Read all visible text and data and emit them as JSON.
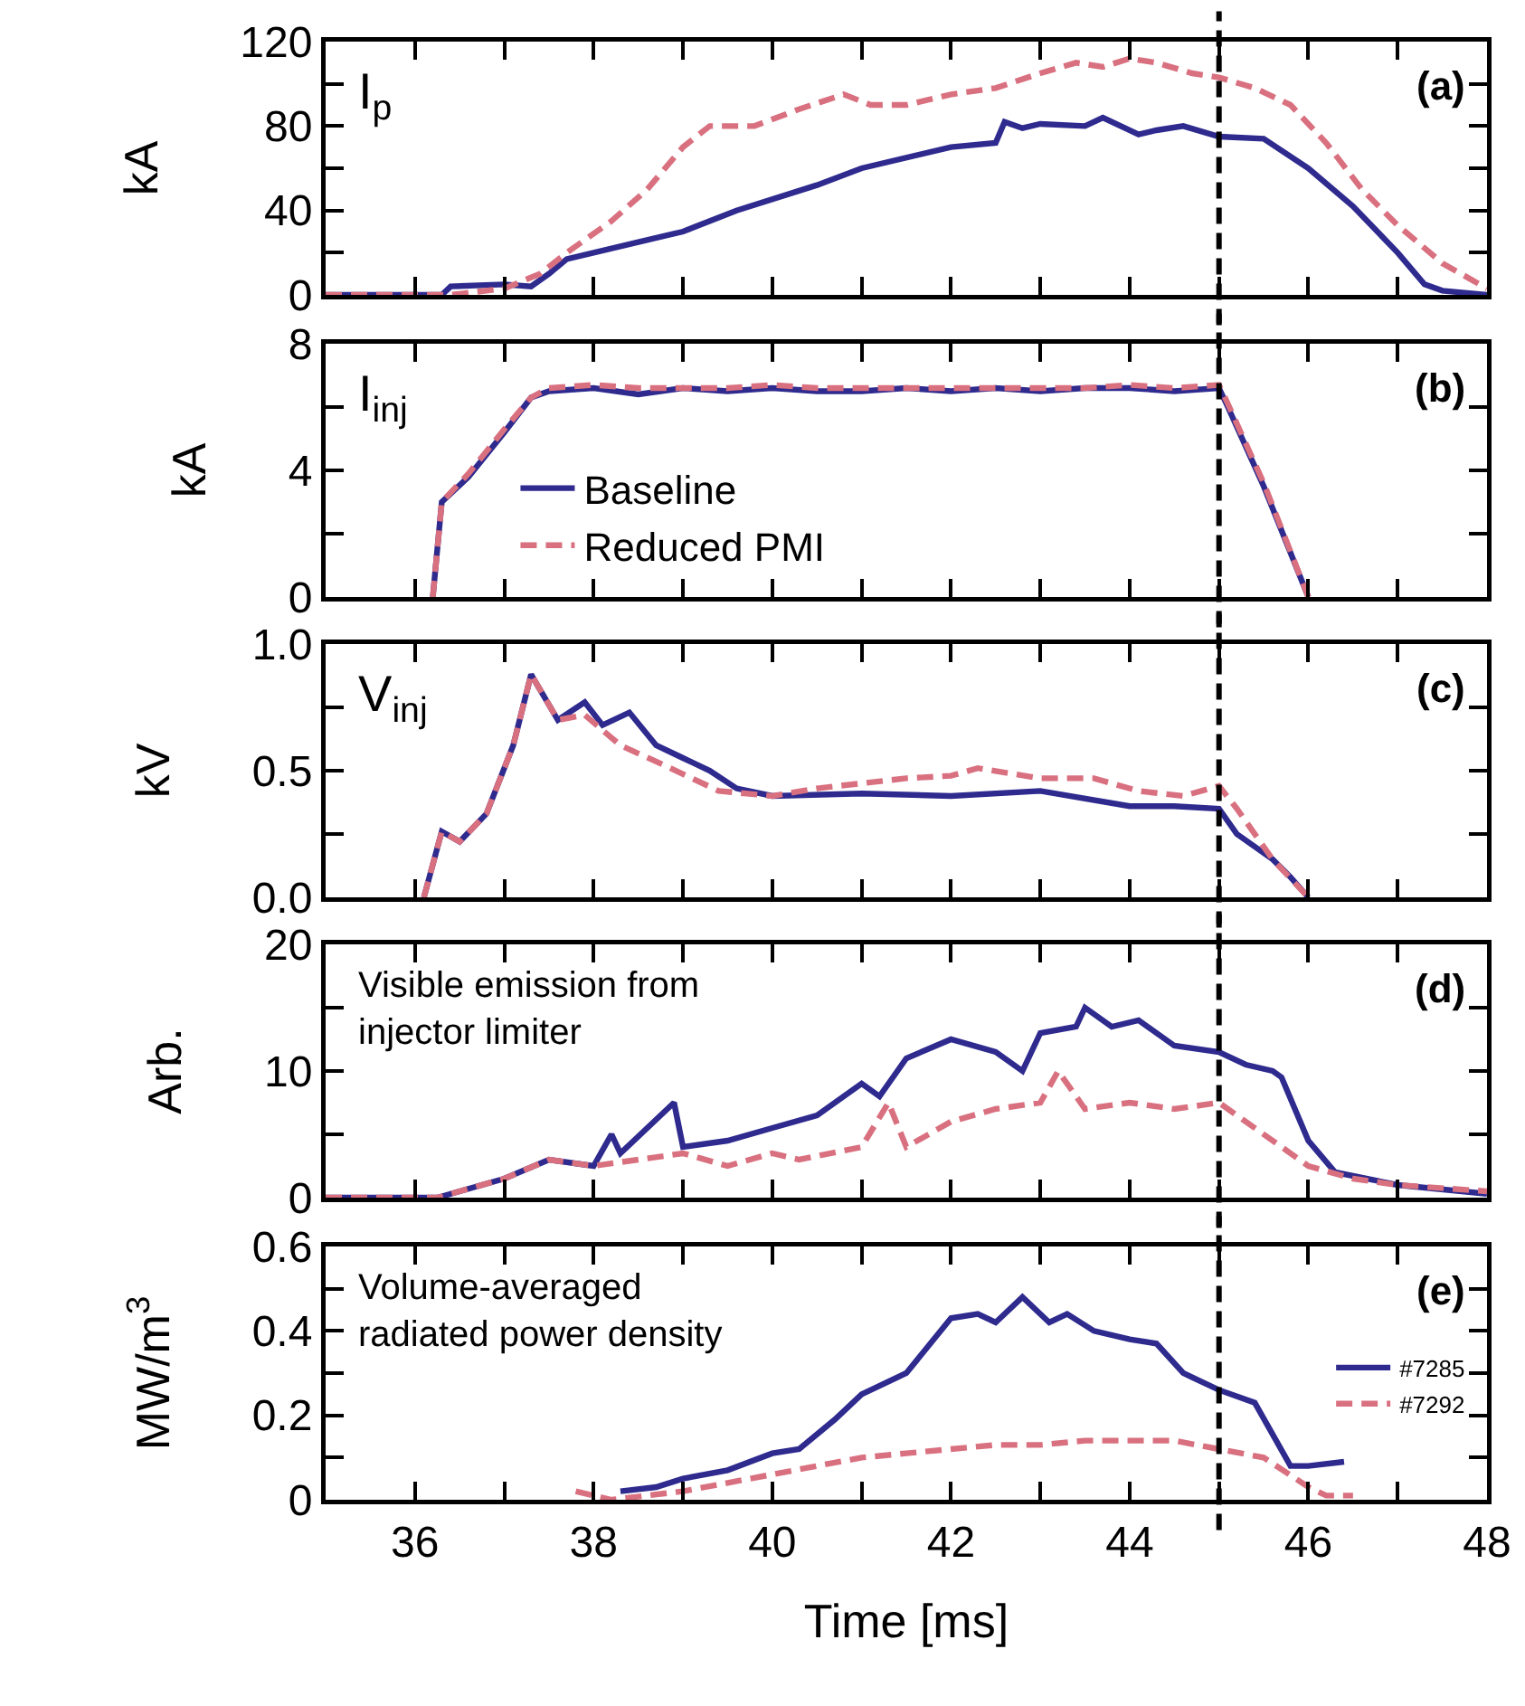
{
  "chart_data": [
    {
      "type": "line",
      "ylabel": "kA",
      "annotations": [
        "I$_{p}$",
        "(a)"
      ],
      "xlim": [
        35,
        48
      ],
      "xticks": [
        36,
        {
          "value": 37,
          "label": null
        },
        38,
        {
          "value": 39,
          "label": null
        },
        40,
        {
          "value": 41,
          "label": null
        },
        42,
        {
          "value": 43,
          "label": null
        },
        44,
        {
          "value": 45,
          "label": null
        },
        46,
        {
          "value": 47,
          "label": null
        },
        48
      ],
      "ylim": [
        0,
        120
      ],
      "yticks": [
        0,
        {
          "value": 20,
          "label": null
        },
        40,
        {
          "value": 60,
          "label": null
        },
        80,
        {
          "value": 100,
          "label": null
        },
        120
      ],
      "tick_labels": "y",
      "grid": false,
      "legend": false,
      "ref_lines": [
        {
          "axis": "x",
          "value": 45,
          "color": "#000000",
          "line_style": "dashed"
        }
      ],
      "series": [
        {
          "color": "#2e2a8e",
          "line_style": "solid",
          "x": [
            35,
            36.3,
            36.4,
            37,
            37.3,
            37.5,
            37.7,
            38.5,
            39,
            39.6,
            40.5,
            41,
            42,
            42.5,
            42.6,
            42.8,
            43,
            43.5,
            43.7,
            44.1,
            44.3,
            44.6,
            45,
            45.5,
            46,
            46.5,
            47,
            47.3,
            47.5,
            48
          ],
          "values": [
            0,
            0,
            4,
            5,
            4,
            10,
            17,
            25,
            30,
            40,
            52,
            60,
            70,
            72,
            82,
            79,
            81,
            80,
            84,
            76,
            78,
            80,
            75,
            74,
            60,
            42,
            20,
            5,
            2,
            0
          ]
        },
        {
          "color": "#d9707f",
          "line_style": "dashed",
          "x": [
            35,
            36.4,
            37,
            37.4,
            37.7,
            38.2,
            38.6,
            39,
            39.3,
            39.8,
            40.3,
            40.8,
            41.1,
            41.5,
            42,
            42.5,
            43,
            43.4,
            43.7,
            44,
            44.3,
            44.7,
            45,
            45.4,
            45.8,
            46.2,
            46.6,
            47,
            47.5,
            48
          ],
          "values": [
            0,
            0,
            3,
            10,
            20,
            35,
            50,
            70,
            80,
            80,
            88,
            95,
            90,
            90,
            95,
            98,
            105,
            110,
            108,
            112,
            110,
            105,
            103,
            98,
            90,
            72,
            50,
            33,
            15,
            3
          ]
        }
      ]
    },
    {
      "type": "line",
      "ylabel": "kA",
      "annotations": [
        "I$_{inj}$",
        "(b)"
      ],
      "xlim": [
        35,
        48
      ],
      "xticks": [
        36,
        {
          "value": 37,
          "label": null
        },
        38,
        {
          "value": 39,
          "label": null
        },
        40,
        {
          "value": 41,
          "label": null
        },
        42,
        {
          "value": 43,
          "label": null
        },
        44,
        {
          "value": 45,
          "label": null
        },
        46,
        {
          "value": 47,
          "label": null
        },
        48
      ],
      "ylim": [
        0,
        8
      ],
      "yticks": [
        0,
        {
          "value": 2,
          "label": null
        },
        4,
        {
          "value": 6,
          "label": null
        },
        8
      ],
      "tick_labels": "y",
      "grid": false,
      "legend": "bottom left",
      "ref_lines": [
        {
          "axis": "x",
          "value": 45,
          "color": "#000000",
          "line_style": "dashed"
        }
      ],
      "series": [
        {
          "name": "Baseline",
          "color": "#2e2a8e",
          "line_style": "solid",
          "x": [
            36.2,
            36.3,
            36.6,
            37,
            37.3,
            37.5,
            38,
            38.5,
            39,
            39.5,
            40,
            40.5,
            41,
            41.5,
            42,
            42.5,
            43,
            43.5,
            44,
            44.5,
            45,
            45.1,
            45.5,
            46
          ],
          "values": [
            0,
            3,
            3.8,
            5.2,
            6.3,
            6.5,
            6.6,
            6.4,
            6.6,
            6.5,
            6.6,
            6.5,
            6.5,
            6.6,
            6.5,
            6.6,
            6.5,
            6.6,
            6.6,
            6.5,
            6.6,
            6,
            3.5,
            0
          ]
        },
        {
          "name": "Reduced PMI",
          "color": "#d9707f",
          "line_style": "dashed",
          "x": [
            36.2,
            36.3,
            36.6,
            37,
            37.3,
            37.5,
            38,
            38.5,
            39,
            39.5,
            40,
            40.5,
            41,
            41.5,
            42,
            42.5,
            43,
            43.5,
            44,
            44.5,
            45,
            45.1,
            45.5,
            46
          ],
          "values": [
            0,
            3,
            3.9,
            5.3,
            6.3,
            6.6,
            6.7,
            6.6,
            6.6,
            6.6,
            6.7,
            6.6,
            6.6,
            6.6,
            6.6,
            6.6,
            6.6,
            6.6,
            6.7,
            6.6,
            6.7,
            6.1,
            3.6,
            0
          ]
        }
      ]
    },
    {
      "type": "line",
      "ylabel": "kV",
      "annotations": [
        "V$_{inj}$",
        "(c)"
      ],
      "xlim": [
        35,
        48
      ],
      "xticks": [
        36,
        {
          "value": 37,
          "label": null
        },
        38,
        {
          "value": 39,
          "label": null
        },
        40,
        {
          "value": 41,
          "label": null
        },
        42,
        {
          "value": 43,
          "label": null
        },
        44,
        {
          "value": 45,
          "label": null
        },
        46,
        {
          "value": 47,
          "label": null
        },
        48
      ],
      "ylim": [
        0,
        1
      ],
      "yticks": [
        {
          "value": 0,
          "label": "0.0"
        },
        {
          "value": 0.25,
          "label": null
        },
        {
          "value": 0.5,
          "label": "0.5"
        },
        {
          "value": 0.75,
          "label": null
        },
        {
          "value": 1,
          "label": "1.0"
        }
      ],
      "tick_labels": "y",
      "grid": false,
      "legend": false,
      "ref_lines": [
        {
          "axis": "x",
          "value": 45,
          "color": "#000000",
          "line_style": "dashed"
        }
      ],
      "series": [
        {
          "color": "#2e2a8e",
          "line_style": "solid",
          "x": [
            36.1,
            36.3,
            36.5,
            36.8,
            37.1,
            37.3,
            37.6,
            37.9,
            38.1,
            38.4,
            38.7,
            39,
            39.3,
            39.6,
            40,
            41,
            42,
            43,
            44,
            44.5,
            45,
            45.2,
            45.6,
            45.8,
            46
          ],
          "values": [
            0,
            0.26,
            0.22,
            0.33,
            0.6,
            0.88,
            0.7,
            0.77,
            0.68,
            0.73,
            0.6,
            0.55,
            0.5,
            0.43,
            0.4,
            0.41,
            0.4,
            0.42,
            0.36,
            0.36,
            0.35,
            0.25,
            0.15,
            0.08,
            0
          ]
        },
        {
          "color": "#d9707f",
          "line_style": "dashed",
          "x": [
            36.1,
            36.3,
            36.5,
            36.8,
            37.1,
            37.3,
            37.6,
            37.9,
            38.3,
            38.8,
            39.4,
            40,
            40.5,
            41,
            41.5,
            42,
            42.3,
            43,
            43.6,
            44.1,
            44.6,
            45,
            45.2,
            45.6,
            46
          ],
          "values": [
            0,
            0.26,
            0.22,
            0.33,
            0.6,
            0.88,
            0.7,
            0.72,
            0.6,
            0.52,
            0.42,
            0.4,
            0.43,
            0.45,
            0.47,
            0.48,
            0.51,
            0.47,
            0.47,
            0.42,
            0.4,
            0.44,
            0.35,
            0.15,
            0
          ]
        }
      ]
    },
    {
      "type": "line",
      "ylabel": "Arb.",
      "annotations": [
        "Visible emission from\ninjector limiter",
        "(d)"
      ],
      "xlim": [
        35,
        48
      ],
      "xticks": [
        36,
        {
          "value": 37,
          "label": null
        },
        38,
        {
          "value": 39,
          "label": null
        },
        40,
        {
          "value": 41,
          "label": null
        },
        42,
        {
          "value": 43,
          "label": null
        },
        44,
        {
          "value": 45,
          "label": null
        },
        46,
        {
          "value": 47,
          "label": null
        },
        48
      ],
      "ylim": [
        0,
        20
      ],
      "yticks": [
        0,
        {
          "value": 5,
          "label": null
        },
        10,
        {
          "value": 15,
          "label": null
        },
        20
      ],
      "tick_labels": "y",
      "grid": false,
      "legend": false,
      "ref_lines": [
        {
          "axis": "x",
          "value": 45,
          "color": "#000000",
          "line_style": "dashed"
        }
      ],
      "series": [
        {
          "color": "#2e2a8e",
          "line_style": "solid",
          "x": [
            35,
            36.25,
            36.5,
            37,
            37.5,
            38,
            38.2,
            38.3,
            38.9,
            39,
            39.5,
            40,
            40.5,
            41,
            41.2,
            41.5,
            42,
            42.5,
            42.8,
            43,
            43.4,
            43.5,
            43.8,
            44.1,
            44.5,
            45,
            45.3,
            45.6,
            45.7,
            46,
            46.3,
            47,
            48
          ],
          "values": [
            0,
            0,
            0.5,
            1.5,
            3,
            2.5,
            5,
            3.5,
            7.5,
            4,
            4.5,
            5.5,
            6.5,
            9,
            8,
            11,
            12.5,
            11.5,
            10,
            13,
            13.5,
            15,
            13.5,
            14,
            12,
            11.5,
            10.5,
            10,
            9.5,
            4.5,
            2,
            1,
            0.3
          ]
        },
        {
          "color": "#d9707f",
          "line_style": "dashed",
          "x": [
            35,
            36.25,
            37,
            37.5,
            38,
            38.5,
            39,
            39.5,
            40,
            40.3,
            41,
            41.3,
            41.5,
            42,
            42.5,
            43,
            43.2,
            43.5,
            44,
            44.5,
            45,
            45.5,
            46,
            46.5,
            47,
            48
          ],
          "values": [
            0,
            0,
            1.5,
            3,
            2.5,
            3,
            3.5,
            2.5,
            3.5,
            3,
            4,
            7.5,
            4,
            6,
            7,
            7.5,
            10,
            7,
            7.5,
            7,
            7.5,
            5,
            2.5,
            1.5,
            1,
            0.5
          ]
        }
      ]
    },
    {
      "type": "line",
      "xlabel": "Time [ms]",
      "ylabel": "MW/m$^{3}$",
      "annotations": [
        "Volume-averaged\nradiated power density",
        "(e)"
      ],
      "xlim": [
        35,
        48
      ],
      "xticks": [
        36,
        {
          "value": 37,
          "label": null
        },
        38,
        {
          "value": 39,
          "label": null
        },
        40,
        {
          "value": 41,
          "label": null
        },
        42,
        {
          "value": 43,
          "label": null
        },
        44,
        {
          "value": 45,
          "label": null
        },
        46,
        {
          "value": 47,
          "label": null
        },
        48
      ],
      "ylim": [
        0,
        0.6
      ],
      "yticks": [
        0,
        {
          "value": 0.1,
          "label": null
        },
        0.2,
        {
          "value": 0.3,
          "label": null
        },
        0.4,
        {
          "value": 0.5,
          "label": null
        },
        0.6
      ],
      "grid": false,
      "legend": "right",
      "ref_lines": [
        {
          "axis": "x",
          "value": 45,
          "color": "#000000",
          "line_style": "dashed"
        }
      ],
      "series": [
        {
          "name": "#7285",
          "color": "#2e2a8e",
          "line_style": "solid",
          "x": [
            38.3,
            38.7,
            39,
            39.5,
            40,
            40.3,
            40.7,
            41,
            41.5,
            42,
            42.3,
            42.5,
            42.8,
            43.1,
            43.3,
            43.6,
            44,
            44.3,
            44.6,
            45,
            45.4,
            45.8,
            46,
            46.4
          ],
          "values": [
            0.02,
            0.03,
            0.05,
            0.07,
            0.11,
            0.12,
            0.19,
            0.25,
            0.3,
            0.43,
            0.44,
            0.42,
            0.48,
            0.42,
            0.44,
            0.4,
            0.38,
            0.37,
            0.3,
            0.26,
            0.23,
            0.08,
            0.08,
            0.09
          ]
        },
        {
          "name": "#7292",
          "color": "#d9707f",
          "line_style": "dashed",
          "x": [
            37.8,
            38.2,
            39,
            39.5,
            40,
            40.5,
            41,
            41.5,
            42,
            42.5,
            43,
            43.5,
            44,
            44.5,
            45,
            45.5,
            46,
            46.2,
            46.5
          ],
          "values": [
            0.02,
            0,
            0.02,
            0.04,
            0.06,
            0.08,
            0.1,
            0.11,
            0.12,
            0.13,
            0.13,
            0.14,
            0.14,
            0.14,
            0.12,
            0.1,
            0.03,
            0.01,
            0.01
          ]
        }
      ]
    }
  ]
}
